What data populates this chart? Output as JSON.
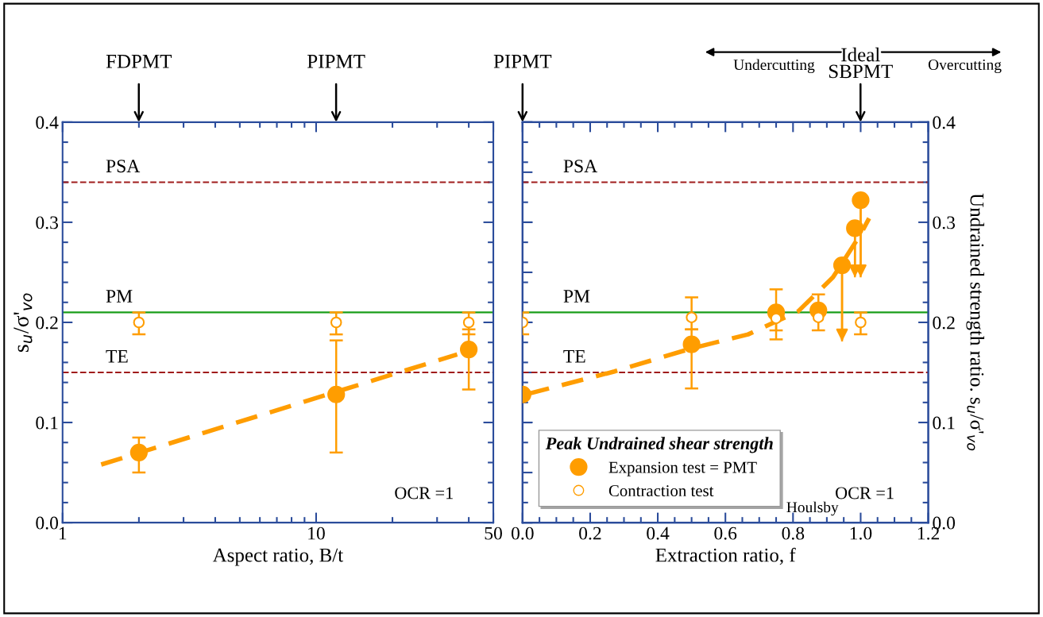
{
  "chart_data": [
    {
      "type": "scatter",
      "xlabel": "Aspect ratio, B/t",
      "ylabel": "s$_{u}$/σ'$_{vo}$",
      "log": "x",
      "xlim": [
        1,
        50
      ],
      "xticks": [
        1,
        10,
        50
      ],
      "ylim": [
        0,
        0.4
      ],
      "yticks": [
        {
          "value": 0,
          "label": "0.0"
        },
        0.1,
        0.2,
        0.3,
        0.4
      ],
      "series": [
        {
          "color": "#ff9d00",
          "marker": "circle",
          "x": [
            2,
            12,
            40
          ],
          "values": [
            0.07,
            0.128,
            0.173
          ],
          "errors": [
            [
              0.05,
              0.085
            ],
            [
              0.07,
              0.182
            ],
            [
              0.133,
              0.193
            ]
          ]
        },
        {
          "color": "#ff9d00",
          "marker": "circle",
          "x": [
            2,
            12,
            40
          ],
          "values": [
            0.2,
            0.2,
            0.2
          ],
          "errors": [
            [
              0.188,
              0.21
            ],
            [
              0.188,
              0.21
            ],
            [
              0.188,
              0.21
            ]
          ]
        },
        {
          "type": "line",
          "color": "#ff9d00",
          "line_style": "dashed",
          "x": [
            1.42,
            36
          ],
          "values": [
            0.058,
            0.168
          ]
        }
      ],
      "ref_lines": [
        {
          "axis": "y",
          "value": 0.34,
          "label": "PSA",
          "color": "#a01c1c",
          "line_style": "dashed"
        },
        {
          "axis": "y",
          "value": 0.21,
          "label": "PM",
          "color": "#1a9e1a",
          "line_style": "solid"
        },
        {
          "axis": "y",
          "value": 0.15,
          "label": "TE",
          "color": "#a01c1c",
          "line_style": "dashed"
        }
      ],
      "annotations": [
        "FDPMT",
        "PIPMT",
        "OCR =1"
      ]
    },
    {
      "type": "scatter",
      "xlabel": "Extraction ratio, f",
      "y2label": "Undrained strength ratio. s$_{u}$/σ'$_{vo}$",
      "xlim": [
        0,
        1.2
      ],
      "xticks": [
        {
          "value": 0,
          "label": "0.0"
        },
        0.2,
        0.4,
        0.6,
        0.8,
        {
          "value": 1,
          "label": "1.0"
        },
        1.2
      ],
      "y2lim": [
        0,
        0.4
      ],
      "y2ticks": [
        {
          "value": 0,
          "label": "0.0"
        },
        0.1,
        0.2,
        0.3,
        0.4
      ],
      "legend_title": "Peak Undrained shear strength",
      "legend": "bottom left",
      "series": [
        {
          "name": "Expansion test = PMT",
          "color": "#ff9d00",
          "marker": "circle",
          "axis": "y2",
          "x": [
            0.0,
            0.5,
            0.75,
            0.875,
            0.945,
            0.983,
            1.0
          ],
          "values": [
            0.128,
            0.178,
            0.21,
            0.212,
            0.257,
            0.294,
            0.322
          ],
          "errors": [
            null,
            [
              0.134,
              0.193
            ],
            [
              0.183,
              0.233
            ],
            [
              0.192,
              0.228
            ],
            [
              0.181,
              0.257
            ],
            [
              0.245,
              0.294
            ],
            [
              0.245,
              0.322
            ]
          ]
        },
        {
          "name": "Contraction test",
          "color": "#ff9d00",
          "marker": "circle",
          "axis": "y2",
          "x": [
            0.0,
            0.5,
            0.75,
            0.875,
            1.0
          ],
          "values": [
            0.2,
            0.205,
            0.204,
            0.205,
            0.2
          ],
          "errors": [
            [
              0.188,
              0.21
            ],
            [
              0.193,
              0.225
            ],
            [
              0.192,
              0.21
            ],
            null,
            [
              0.188,
              0.21
            ]
          ]
        },
        {
          "type": "line",
          "color": "#ff9d00",
          "line_style": "dashed",
          "axis": "y2",
          "x": [
            0.015,
            0.272,
            0.5,
            0.667,
            0.815,
            0.918,
            1.0,
            1.025
          ],
          "values": [
            0.1285,
            0.151,
            0.174,
            0.188,
            0.211,
            0.245,
            0.288,
            0.304
          ]
        }
      ],
      "ref_lines": [
        {
          "axis": "y2",
          "value": 0.34,
          "label": "PSA",
          "color": "#a01c1c",
          "line_style": "dashed"
        },
        {
          "axis": "y2",
          "value": 0.21,
          "label": "PM",
          "color": "#1a9e1a",
          "line_style": "solid"
        },
        {
          "axis": "y2",
          "value": 0.15,
          "label": "TE",
          "color": "#a01c1c",
          "line_style": "dashed"
        }
      ],
      "annotations": [
        "PIPMT",
        "Ideal\nSBPMT",
        "Undercutting",
        "Overcutting",
        "OCR =1",
        "Houlsby"
      ]
    }
  ]
}
